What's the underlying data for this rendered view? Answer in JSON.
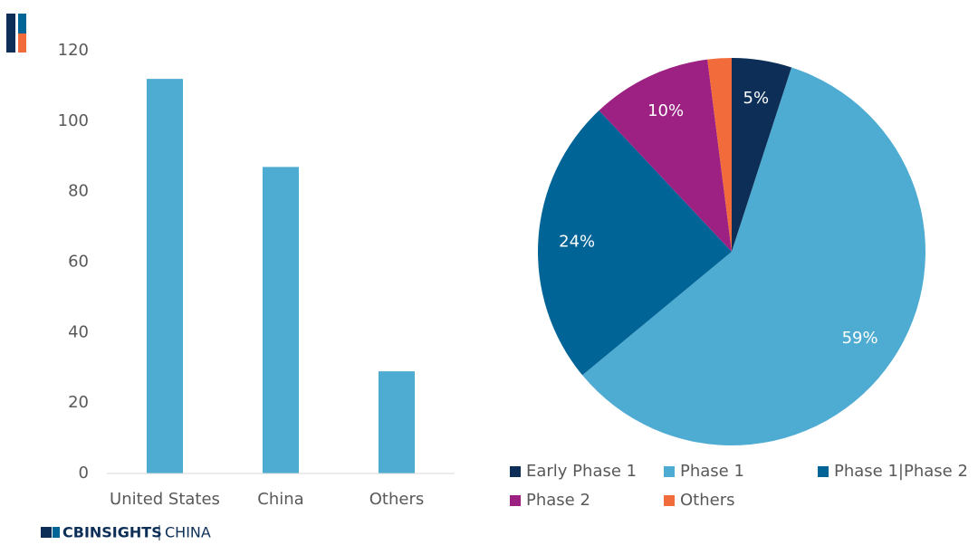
{
  "chart_data": [
    {
      "type": "bar",
      "categories": [
        "United States",
        "China",
        "Others"
      ],
      "values": [
        112,
        87,
        29
      ],
      "color": "#4eabd1",
      "ylim": [
        0,
        120
      ],
      "yticks": [
        0,
        20,
        40,
        60,
        80,
        100,
        120
      ],
      "grid": false
    },
    {
      "type": "pie",
      "categories": [
        "Early Phase 1",
        "Phase 1",
        "Phase 1|Phase 2",
        "Phase 2",
        "Others"
      ],
      "values": [
        5,
        59,
        24,
        10,
        2
      ],
      "value_labels": [
        "5%",
        "59%",
        "24%",
        "10%",
        null
      ],
      "colors": [
        "#0d2f57",
        "#4eabd1",
        "#006497",
        "#9c2183",
        "#f26b3a"
      ],
      "legend": "bottom"
    }
  ],
  "footer": {
    "brand": "CBINSIGHTS",
    "region": "CHINA"
  }
}
